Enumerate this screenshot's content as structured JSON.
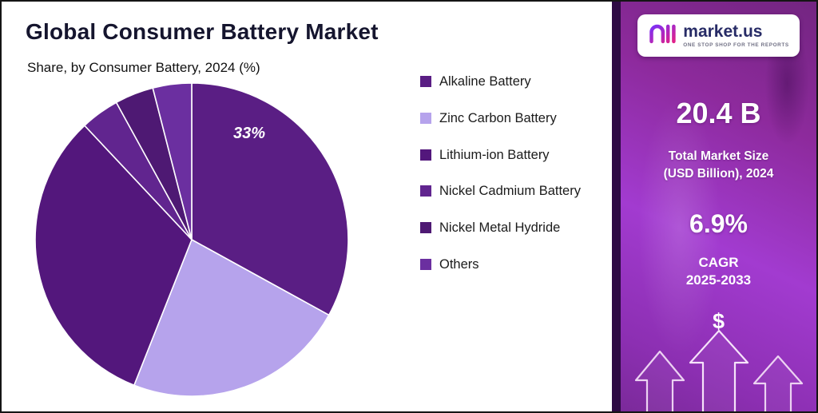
{
  "title": "Global Consumer Battery Market",
  "subtitle": "Share, by Consumer Battery, 2024 (%)",
  "chart_data": {
    "type": "pie",
    "title": "Share, by Consumer Battery, 2024 (%)",
    "categories": [
      "Alkaline Battery",
      "Zinc Carbon Battery",
      "Lithium-ion Battery",
      "Nickel Cadmium Battery",
      "Nickel Metal Hydride",
      "Others"
    ],
    "values": [
      33,
      23,
      32,
      4,
      4,
      4
    ],
    "colors": [
      "#5a1e84",
      "#b6a3ec",
      "#53177c",
      "#61258f",
      "#4e1973",
      "#6b2fa0"
    ],
    "data_label": {
      "category": "Alkaline Battery",
      "text": "33%"
    },
    "legend_position": "right",
    "start_angle_deg": 0,
    "slice_border_color": "#ffffff"
  },
  "sidebar": {
    "logo": {
      "brand": "market.us",
      "tagline": "ONE STOP SHOP FOR THE REPORTS"
    },
    "market_size_value": "20.4 B",
    "market_size_label_line1": "Total Market Size",
    "market_size_label_line2": "(USD Billion), 2024",
    "cagr_value": "6.9%",
    "cagr_label": "CAGR",
    "cagr_period": "2025-2033",
    "dollar_symbol": "$"
  }
}
